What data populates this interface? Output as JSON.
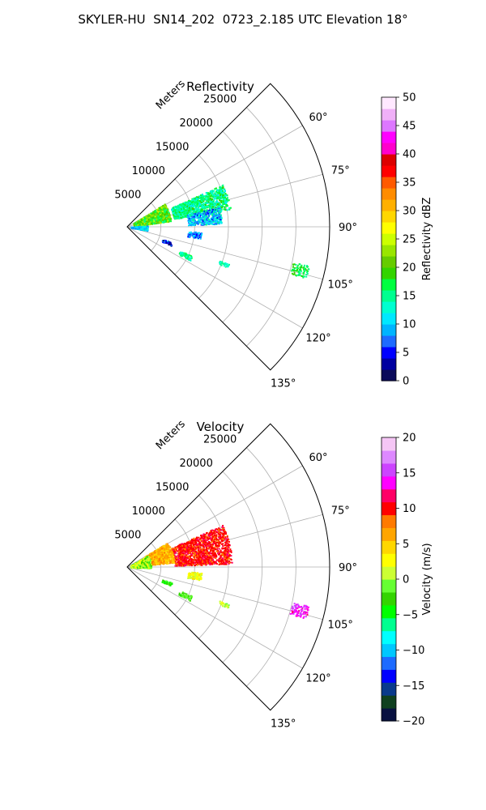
{
  "figure_title": "SKYLER-HU  SN14_202  0723_2.185 UTC Elevation 18°",
  "colors": {
    "grid": "#b0b0b0",
    "reflectivity_scale": [
      "#0b0b5a",
      "#0000a0",
      "#0000ff",
      "#1e6bff",
      "#00b4ff",
      "#00e8ff",
      "#00ffd0",
      "#00ff90",
      "#00ff40",
      "#33d400",
      "#66cc00",
      "#99e600",
      "#ccff00",
      "#ffff00",
      "#ffd700",
      "#ffb000",
      "#ff8c00",
      "#ff5a00",
      "#ff0000",
      "#dd0000",
      "#ff00cc",
      "#ff00ff",
      "#dd77ff",
      "#f0b0f8",
      "#ffe8ff"
    ],
    "velocity_scale": [
      "#081040",
      "#104020",
      "#0a3a8c",
      "#0000ff",
      "#1e6bff",
      "#00c8ff",
      "#00ffff",
      "#00ff90",
      "#00ff00",
      "#33d400",
      "#66ff33",
      "#ccff33",
      "#ffff00",
      "#ffd700",
      "#ffa500",
      "#ff7a00",
      "#ff0000",
      "#ff0066",
      "#ff00ff",
      "#cc44ff",
      "#dd88ff",
      "#f5c6f5"
    ]
  },
  "chart_data": [
    {
      "type": "polar",
      "title": "Reflectivity",
      "r_label": "Meters",
      "r_ticks": [
        5000,
        10000,
        15000,
        20000,
        25000
      ],
      "r_tick_labels": [
        "5000",
        "10000",
        "15000",
        "20000",
        "25000"
      ],
      "r_max": 30000,
      "theta_range_deg": [
        45,
        135
      ],
      "theta_ticks_deg": [
        60,
        75,
        90,
        105,
        120,
        135
      ],
      "theta_tick_labels": [
        "60°",
        "75°",
        "90°",
        "105°",
        "120°",
        "135°"
      ],
      "grid": true,
      "colorbar": {
        "label": "Reflectivity dBZ",
        "min": 0,
        "max": 50,
        "ticks": [
          0,
          5,
          10,
          15,
          20,
          25,
          30,
          35,
          40,
          45,
          50
        ],
        "tick_labels": [
          "0",
          "5",
          "10",
          "15",
          "20",
          "25",
          "30",
          "35",
          "40",
          "45",
          "50"
        ]
      },
      "echo_regions": [
        {
          "theta_deg": [
            66,
            80
          ],
          "r_m": [
            7000,
            15500
          ],
          "value": 15,
          "spread": 4
        },
        {
          "theta_deg": [
            78,
            88
          ],
          "r_m": [
            9000,
            14000
          ],
          "value": 10,
          "spread": 5
        },
        {
          "theta_deg": [
            58,
            82
          ],
          "r_m": [
            1000,
            6500
          ],
          "value": 20,
          "spread": 5
        },
        {
          "theta_deg": [
            86,
            100
          ],
          "r_m": [
            500,
            3000
          ],
          "value": 10,
          "spread": 3
        },
        {
          "theta_deg": [
            94,
            99
          ],
          "r_m": [
            9000,
            11000
          ],
          "value": 8,
          "spread": 4
        },
        {
          "theta_deg": [
            109,
            113
          ],
          "r_m": [
            5500,
            7000
          ],
          "value": 5,
          "spread": 4
        },
        {
          "theta_deg": [
            114,
            118
          ],
          "r_m": [
            8500,
            10500
          ],
          "value": 15,
          "spread": 3
        },
        {
          "theta_deg": [
            102,
            106
          ],
          "r_m": [
            25000,
            27500
          ],
          "value": 17,
          "spread": 3
        },
        {
          "theta_deg": [
            110,
            112
          ],
          "r_m": [
            14500,
            16000
          ],
          "value": 14,
          "spread": 2
        }
      ]
    },
    {
      "type": "polar",
      "title": "Velocity",
      "r_label": "Meters",
      "r_ticks": [
        5000,
        10000,
        15000,
        20000,
        25000
      ],
      "r_tick_labels": [
        "5000",
        "10000",
        "15000",
        "20000",
        "25000"
      ],
      "r_max": 30000,
      "theta_range_deg": [
        45,
        135
      ],
      "theta_ticks_deg": [
        60,
        75,
        90,
        105,
        120,
        135
      ],
      "theta_tick_labels": [
        "60°",
        "75°",
        "90°",
        "105°",
        "120°",
        "135°"
      ],
      "grid": true,
      "colorbar": {
        "label": "Velocity (m/s)",
        "min": -20,
        "max": 20,
        "ticks": [
          -20,
          -15,
          -10,
          -5,
          0,
          5,
          10,
          15,
          20
        ],
        "tick_labels": [
          "−20",
          "−15",
          "−10",
          "−5",
          "0",
          "5",
          "10",
          "15",
          "20"
        ]
      },
      "echo_regions": [
        {
          "theta_deg": [
            66,
            88
          ],
          "r_m": [
            7000,
            15500
          ],
          "value": 10,
          "spread": 1.5
        },
        {
          "theta_deg": [
            58,
            84
          ],
          "r_m": [
            3000,
            7000
          ],
          "value": 6,
          "spread": 2
        },
        {
          "theta_deg": [
            60,
            92
          ],
          "r_m": [
            500,
            3500
          ],
          "value": 0,
          "spread": 3
        },
        {
          "theta_deg": [
            94,
            100
          ],
          "r_m": [
            9000,
            11000
          ],
          "value": 2,
          "spread": 2
        },
        {
          "theta_deg": [
            109,
            113
          ],
          "r_m": [
            5500,
            7000
          ],
          "value": -3,
          "spread": 2
        },
        {
          "theta_deg": [
            114,
            118
          ],
          "r_m": [
            8500,
            10500
          ],
          "value": -2,
          "spread": 2
        },
        {
          "theta_deg": [
            102,
            106
          ],
          "r_m": [
            25000,
            27500
          ],
          "value": 14,
          "spread": 2
        },
        {
          "theta_deg": [
            110,
            112
          ],
          "r_m": [
            14500,
            16000
          ],
          "value": 1,
          "spread": 2
        }
      ]
    }
  ]
}
